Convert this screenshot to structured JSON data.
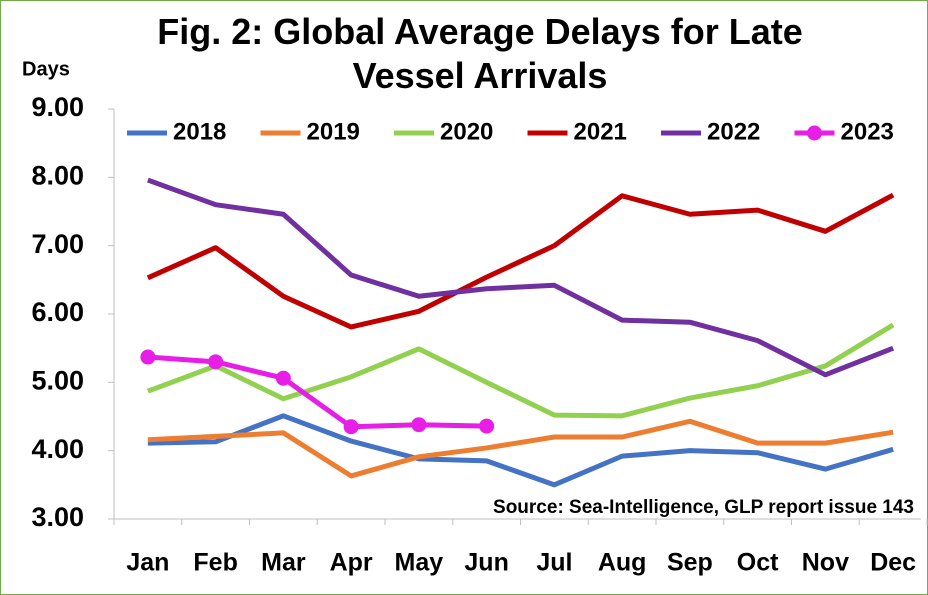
{
  "chart_data": {
    "type": "line",
    "title": "Fig. 2: Global Average Delays for Late Vessel Arrivals",
    "y_label": "Days",
    "annotation": "Source: Sea-Intelligence, GLP report issue 143",
    "categories": [
      "Jan",
      "Feb",
      "Mar",
      "Apr",
      "May",
      "Jun",
      "Jul",
      "Aug",
      "Sep",
      "Oct",
      "Nov",
      "Dec"
    ],
    "series": [
      {
        "name": "2018",
        "color": "#4472c4",
        "values": [
          4.11,
          4.13,
          4.51,
          4.14,
          3.88,
          3.85,
          3.5,
          3.92,
          4.0,
          3.97,
          3.73,
          4.02
        ]
      },
      {
        "name": "2019",
        "color": "#ed7d31",
        "values": [
          4.16,
          4.21,
          4.26,
          3.63,
          3.91,
          4.04,
          4.2,
          4.2,
          4.43,
          4.11,
          4.11,
          4.27
        ]
      },
      {
        "name": "2020",
        "color": "#92d050",
        "values": [
          4.87,
          5.24,
          4.76,
          5.08,
          5.49,
          5.0,
          4.52,
          4.51,
          4.77,
          4.95,
          5.24,
          5.84
        ]
      },
      {
        "name": "2021",
        "color": "#c00000",
        "values": [
          6.53,
          6.97,
          6.26,
          5.81,
          6.04,
          6.54,
          7.0,
          7.73,
          7.46,
          7.52,
          7.21,
          7.74
        ]
      },
      {
        "name": "2022",
        "color": "#7030a0",
        "values": [
          7.96,
          7.6,
          7.46,
          6.57,
          6.26,
          6.37,
          6.42,
          5.91,
          5.88,
          5.61,
          5.11,
          5.5
        ]
      },
      {
        "name": "2023",
        "color": "#e61ee6",
        "marker": "circle",
        "values": [
          5.37,
          5.3,
          5.06,
          4.35,
          4.38,
          4.36,
          null,
          null,
          null,
          null,
          null,
          null
        ]
      }
    ],
    "ylim": [
      3,
      9
    ],
    "yticks": [
      {
        "value": 3,
        "label": "3.00"
      },
      {
        "value": 4,
        "label": "4.00"
      },
      {
        "value": 5,
        "label": "5.00"
      },
      {
        "value": 6,
        "label": "6.00"
      },
      {
        "value": 7,
        "label": "7.00"
      },
      {
        "value": 8,
        "label": "8.00"
      },
      {
        "value": 9,
        "label": "9.00"
      }
    ],
    "grid": false,
    "legend": "top"
  }
}
